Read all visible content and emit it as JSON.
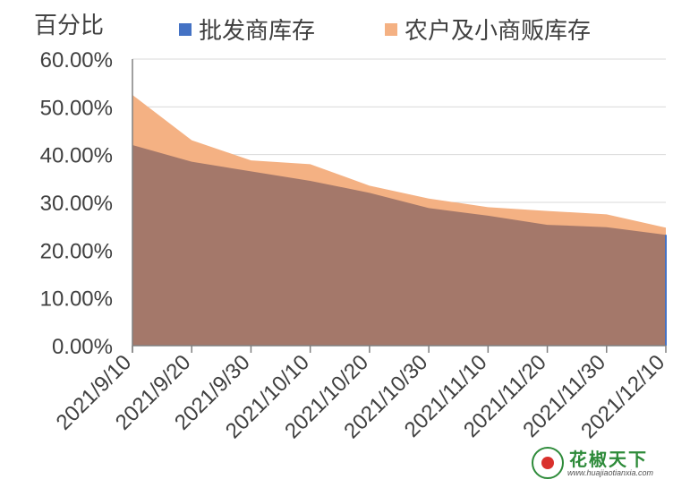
{
  "chart_data": {
    "type": "area",
    "unit_label": "百分比",
    "categories": [
      "2021/9/10",
      "2021/9/20",
      "2021/9/30",
      "2021/10/10",
      "2021/10/20",
      "2021/10/30",
      "2021/11/10",
      "2021/11/20",
      "2021/11/30",
      "2021/12/10"
    ],
    "series": [
      {
        "name": "批发商库存",
        "color": "#4472C4",
        "fill": "#A4786A",
        "values": [
          42.0,
          38.5,
          36.5,
          34.5,
          32.0,
          28.8,
          27.2,
          25.3,
          24.8,
          23.2
        ]
      },
      {
        "name": "农户及小商贩库存",
        "color": "#F4B183",
        "fill": "#F4B183",
        "values": [
          52.5,
          43.0,
          38.8,
          38.0,
          33.5,
          30.8,
          29.0,
          28.2,
          27.5,
          24.7
        ]
      }
    ],
    "ylim": [
      0,
      60
    ],
    "yticks": [
      "0.00%",
      "10.00%",
      "20.00%",
      "30.00%",
      "40.00%",
      "50.00%",
      "60.00%"
    ],
    "grid": true,
    "legend_position": "top"
  },
  "watermark": {
    "name": "花椒天下",
    "url": "www.huajiaotianxia.com"
  }
}
